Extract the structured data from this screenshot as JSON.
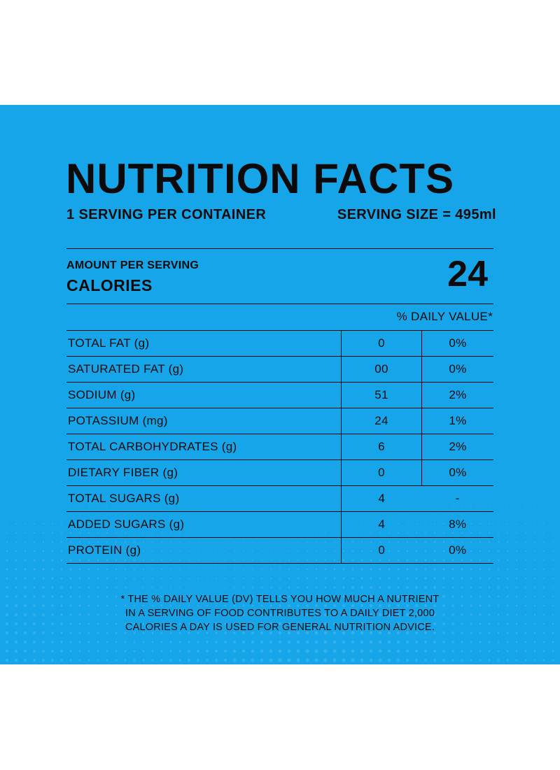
{
  "header": {
    "title": "NUTRITION FACTS",
    "servings_per_container": "1 SERVING PER CONTAINER",
    "serving_size": "SERVING SIZE = 495ml"
  },
  "calories_block": {
    "amount_per_serving": "AMOUNT PER SERVING",
    "calories_label": "CALORIES",
    "calories_value": "24"
  },
  "daily_value_header": "% DAILY VALUE*",
  "nutrients": [
    {
      "name": "TOTAL FAT (g)",
      "amount": "0",
      "daily_value": "0%"
    },
    {
      "name": "SATURATED FAT (g)",
      "amount": "00",
      "daily_value": "0%"
    },
    {
      "name": "SODIUM (g)",
      "amount": "51",
      "daily_value": "2%"
    },
    {
      "name": "POTASSIUM (mg)",
      "amount": "24",
      "daily_value": "1%"
    },
    {
      "name": "TOTAL CARBOHYDRATES (g)",
      "amount": "6",
      "daily_value": "2%"
    },
    {
      "name": "DIETARY FIBER (g)",
      "amount": "0",
      "daily_value": "0%"
    },
    {
      "name": "TOTAL SUGARS (g)",
      "amount": "4",
      "daily_value": "-"
    },
    {
      "name": "ADDED SUGARS (g)",
      "amount": "4",
      "daily_value": "8%"
    },
    {
      "name": "PROTEIN (g)",
      "amount": "0",
      "daily_value": "0%"
    }
  ],
  "footnote": {
    "lines": [
      "* THE % DAILY VALUE (DV) TELLS YOU HOW MUCH A NUTRIENT",
      "IN A SERVING OF FOOD CONTRIBUTES TO A DAILY DIET 2,000",
      "CALORIES A DAY IS USED FOR GENERAL NUTRITION ADVICE."
    ]
  },
  "colors": {
    "panel_background": "#16a5e9",
    "text": "#0b0b0b",
    "page_background": "#ffffff"
  }
}
